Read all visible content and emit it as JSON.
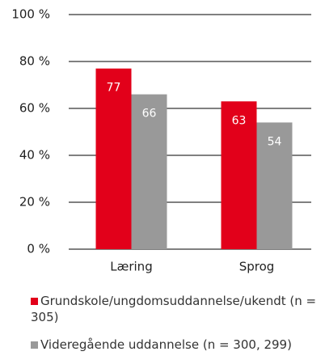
{
  "chart_data": {
    "type": "bar",
    "categories": [
      "Læring",
      "Sprog"
    ],
    "series": [
      {
        "name": "Grundskole/ungdomsuddannelse/ukendt (n = 305)",
        "color": "#e2001a",
        "values": [
          77,
          63
        ]
      },
      {
        "name": "Videregående uddannelse (n = 300, 299)",
        "color": "#999999",
        "values": [
          66,
          54
        ]
      }
    ],
    "ylim": [
      0,
      100
    ],
    "yticks": [
      {
        "value": 0,
        "label": "0 %"
      },
      {
        "value": 20,
        "label": "20 %"
      },
      {
        "value": 40,
        "label": "40 %"
      },
      {
        "value": 60,
        "label": "60 %"
      },
      {
        "value": 80,
        "label": "80 %"
      },
      {
        "value": 100,
        "label": "100 %"
      }
    ],
    "grid": true
  }
}
